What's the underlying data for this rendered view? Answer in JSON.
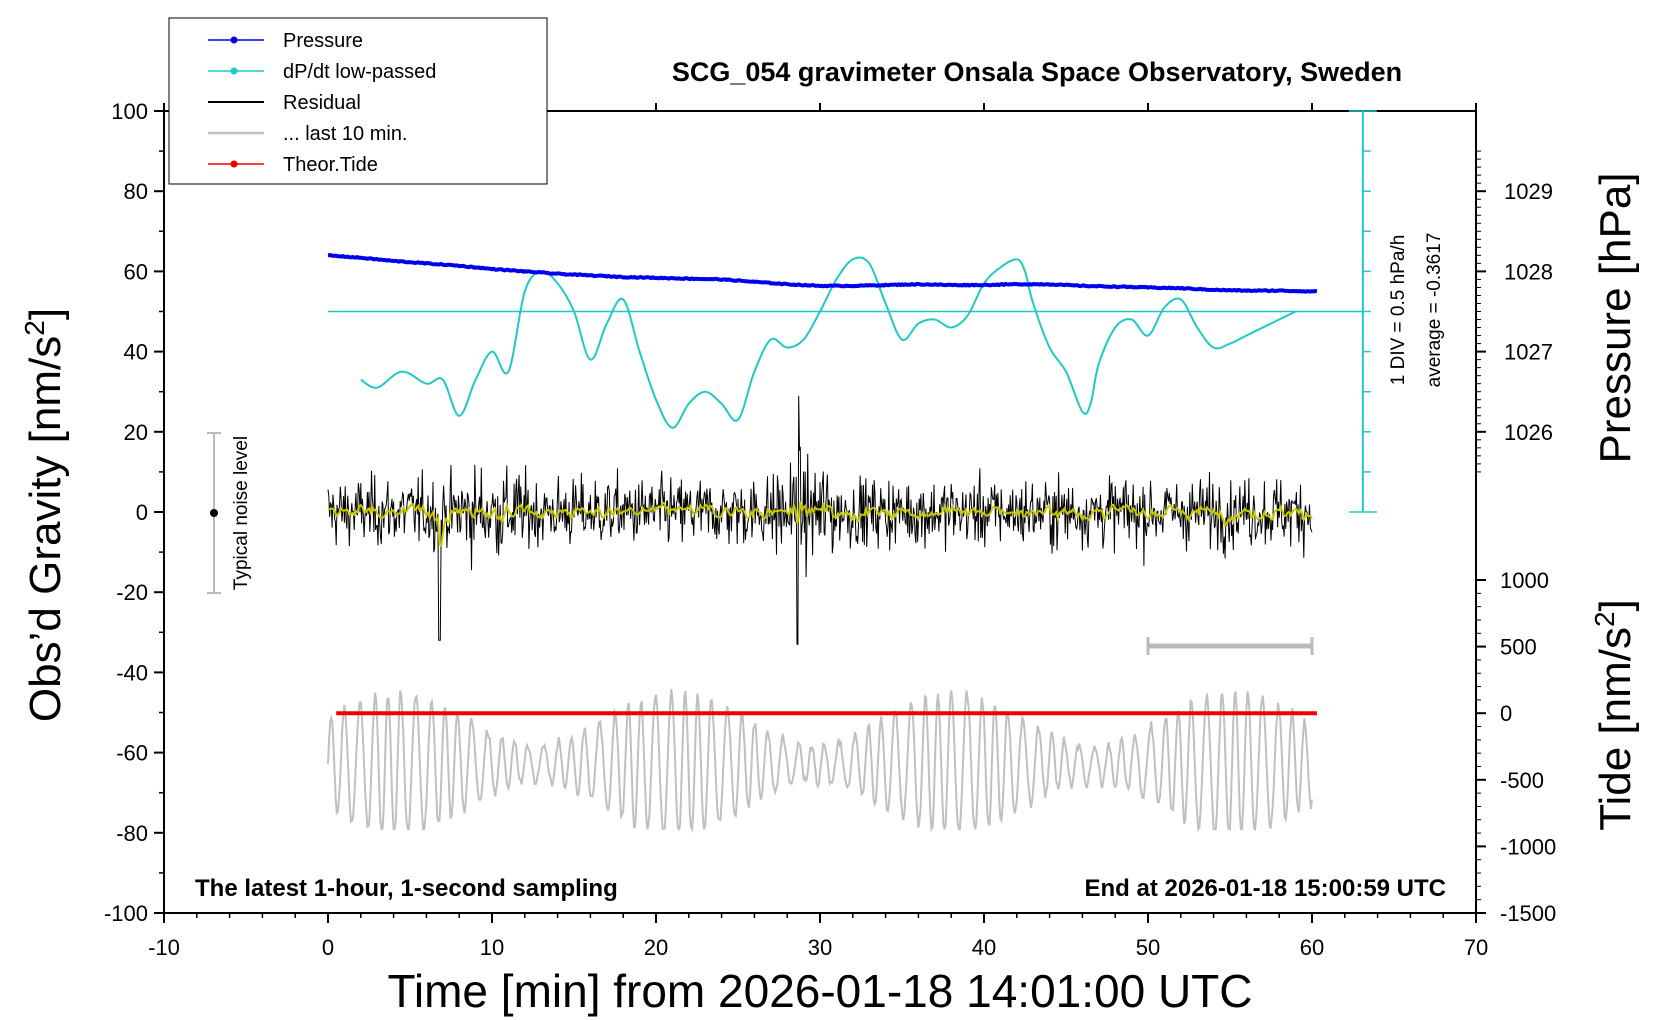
{
  "chart_data": {
    "type": "line",
    "title": "SCG_054 gravimeter Onsala Space Observatory, Sweden",
    "xlabel": "Time [min] from 2026-01-18 14:01:00 UTC",
    "ylabel_left": "Obs’d Gravity [nm/s",
    "ylabel_right_top": "Pressure [hPa]",
    "ylabel_right_bottom": "Tide [nm/s",
    "superscript": "2",
    "xlim": [
      -10,
      70
    ],
    "ylim_left": [
      -100,
      100
    ],
    "x_ticks": [
      "-10",
      "0",
      "10",
      "20",
      "30",
      "40",
      "50",
      "60",
      "70"
    ],
    "y_ticks_left": [
      "100",
      "80",
      "60",
      "40",
      "20",
      "0",
      "-20",
      "-40",
      "-60",
      "-80",
      "-100"
    ],
    "pressure_ticks": [
      "1029",
      "1028",
      "1027",
      "1026"
    ],
    "tide_ticks": [
      "1000",
      "500",
      "0",
      "-500",
      "-1000",
      "-1500"
    ],
    "legend": [
      "Pressure",
      "dP/dt low-passed",
      "Residual",
      "... last 10 min.",
      "Theor.Tide"
    ],
    "colors": {
      "pressure": "#0000ee",
      "dpdt": "#20c8c8",
      "residual": "#000000",
      "last10": "#c0c0c0",
      "tide": "#ee0000",
      "smooth": "#c8c800"
    },
    "noise_label": "Typical noise level",
    "dpdt_scale": "1 DIV = 0.5 hPa/h",
    "dpdt_average": "average = -0.3617",
    "footer_left": "The latest 1-hour, 1-second sampling",
    "footer_right": "End at 2026-01-18 15:00:59 UTC",
    "series": [
      {
        "name": "Pressure",
        "x": [
          0,
          2,
          4,
          6,
          8,
          10,
          12,
          14,
          16,
          18,
          20,
          22,
          24,
          26,
          28,
          30,
          32,
          34,
          36,
          38,
          40,
          42,
          44,
          46,
          48,
          50,
          52,
          54,
          56,
          58,
          60.3
        ],
        "y": [
          1028.2,
          1028.17,
          1028.13,
          1028.1,
          1028.07,
          1028.03,
          1028.0,
          1027.97,
          1027.95,
          1027.93,
          1027.92,
          1027.91,
          1027.9,
          1027.87,
          1027.84,
          1027.82,
          1027.82,
          1027.83,
          1027.84,
          1027.83,
          1027.83,
          1027.84,
          1027.84,
          1027.82,
          1027.81,
          1027.8,
          1027.79,
          1027.77,
          1027.76,
          1027.76,
          1027.75
        ]
      },
      {
        "name": "dP/dt low-passed",
        "x": [
          2,
          3,
          4.5,
          6,
          7,
          8,
          9,
          10,
          11,
          12,
          13,
          14,
          15,
          16,
          17,
          18,
          19,
          20,
          21,
          22,
          23,
          24,
          25,
          26,
          27,
          28,
          29,
          30,
          31,
          32,
          33,
          34,
          35,
          36,
          37,
          38,
          39,
          40,
          41,
          42,
          42.5,
          43,
          44,
          45,
          46,
          46.5,
          47,
          48,
          49,
          50,
          51,
          52,
          53,
          54,
          55,
          56,
          57,
          58,
          59
        ],
        "y": [
          33,
          31,
          35,
          32,
          33,
          24,
          33,
          40,
          35,
          55,
          60,
          57,
          50,
          38,
          47,
          53,
          40,
          28,
          21,
          27,
          30,
          27,
          23,
          35,
          43,
          41,
          43,
          50,
          58,
          63,
          62,
          52,
          43,
          47,
          48,
          46,
          49,
          57,
          61,
          63,
          60,
          52,
          41,
          35,
          25,
          27,
          37,
          46,
          48,
          44,
          51,
          53,
          46,
          41,
          42,
          44,
          46,
          48,
          50
        ]
      },
      {
        "name": "Residual",
        "x_range": [
          0,
          60
        ],
        "y_range": [
          -33,
          29
        ]
      },
      {
        "name": "... last 10 min.",
        "x_range": [
          0,
          60
        ],
        "tide_range": [
          -870,
          180
        ]
      },
      {
        "name": "Theor.Tide",
        "x": [
          0.5,
          60.3
        ],
        "tide": [
          0,
          0
        ]
      }
    ]
  }
}
